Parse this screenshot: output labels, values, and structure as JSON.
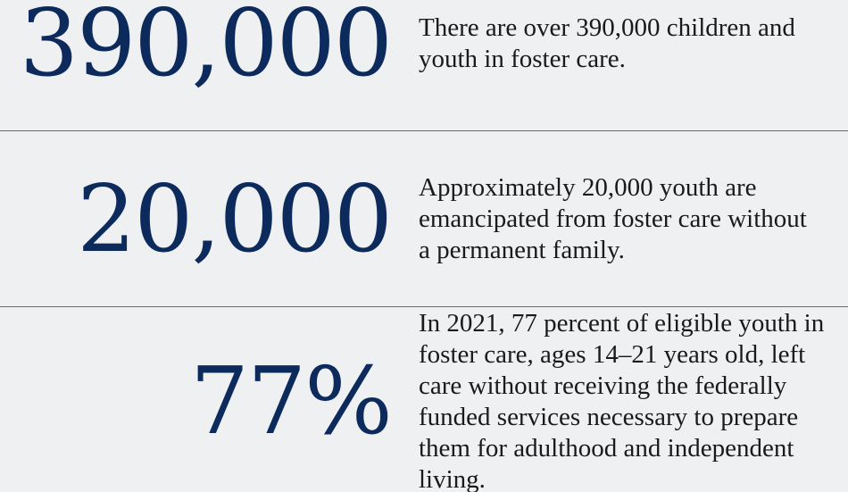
{
  "stats": [
    {
      "number": "390,000",
      "text": "There are over 390,000 children and youth in foster care."
    },
    {
      "number": "20,000",
      "text": "Approximately 20,000 youth are emancipated from foster care without a permanent family."
    },
    {
      "number": "77%",
      "text": "In 2021, 77 percent of eligible youth in foster care, ages 14–21 years old, left care without receiving the federally funded services necessary to prepare them for adulthood and independent living."
    }
  ],
  "colors": {
    "background": "#eef0f2",
    "number": "#0d2a5c",
    "text": "#1a1a1a",
    "divider": "#6a6a6a"
  }
}
